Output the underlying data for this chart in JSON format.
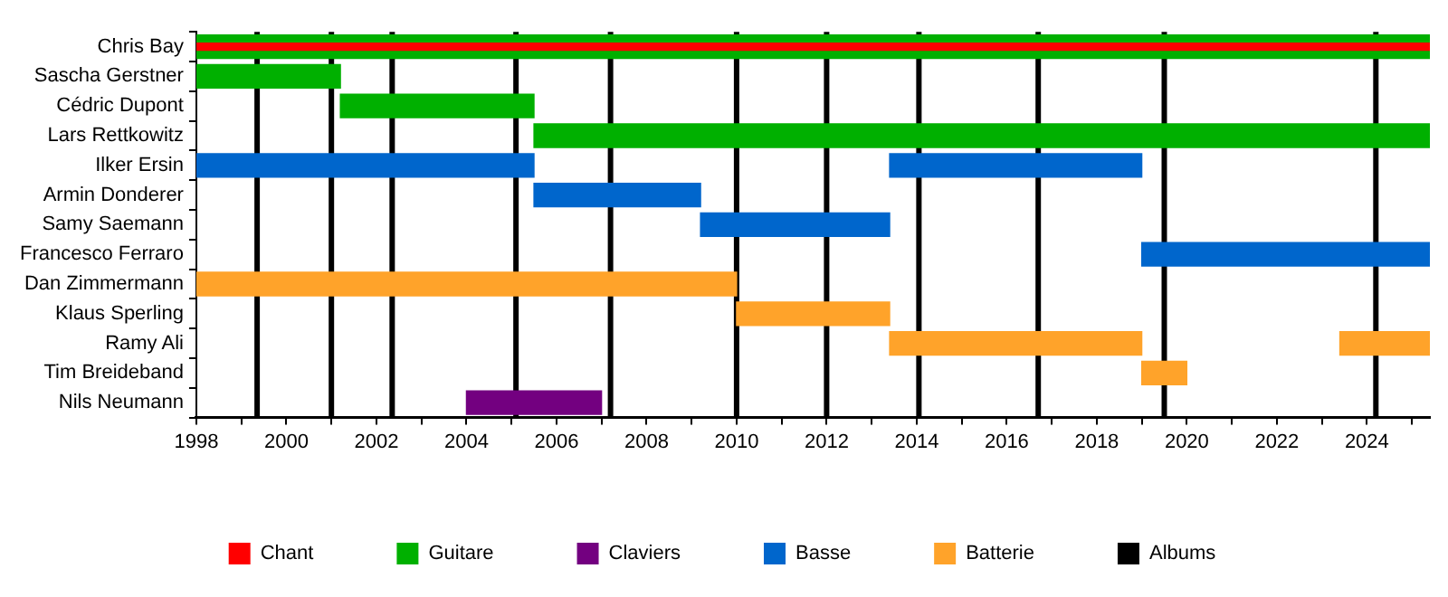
{
  "chart_data": {
    "type": "bar",
    "orientation": "horizontal",
    "categories": [
      "Chris Bay",
      "Sascha Gerstner",
      "Cédric Dupont",
      "Lars Rettkowitz",
      "Ilker Ersin",
      "Armin Donderer",
      "Samy Saemann",
      "Francesco Ferraro",
      "Dan Zimmermann",
      "Klaus Sperling",
      "Ramy Ali",
      "Tim Breideband",
      "Nils Neumann"
    ],
    "series": [
      {
        "name": "Chant",
        "color": "#ff0000",
        "values": [
          27.4,
          null,
          null,
          null,
          null,
          null,
          null,
          null,
          null,
          null,
          null,
          null,
          null
        ],
        "base": [
          1998,
          null,
          null,
          null,
          null,
          null,
          null,
          null,
          null,
          null,
          null,
          null,
          null
        ]
      },
      {
        "name": "Guitare",
        "color": "#00b000",
        "values": [
          27.4,
          3.2,
          4.3,
          19.9,
          null,
          null,
          null,
          null,
          null,
          null,
          null,
          null,
          null
        ],
        "base": [
          1998,
          1998,
          2001.2,
          2005.5,
          null,
          null,
          null,
          null,
          null,
          null,
          null,
          null,
          null
        ]
      },
      {
        "name": "Claviers",
        "color": "#730080",
        "values": [
          null,
          null,
          null,
          null,
          null,
          null,
          null,
          null,
          null,
          null,
          null,
          null,
          3
        ],
        "base": [
          null,
          null,
          null,
          null,
          null,
          null,
          null,
          null,
          null,
          null,
          null,
          null,
          2004
        ]
      },
      {
        "name": "Basse",
        "color": "#0066cc",
        "values": [
          null,
          null,
          null,
          null,
          7.5,
          3.7,
          4.2,
          6.4,
          null,
          null,
          null,
          null,
          null
        ],
        "base": [
          null,
          null,
          null,
          null,
          1998,
          2005.5,
          2009.2,
          2019,
          null,
          null,
          null,
          null,
          null
        ]
      },
      {
        "color": "#0066cc",
        "values": [
          null,
          null,
          null,
          null,
          5.6,
          null,
          null,
          null,
          null,
          null,
          null,
          null,
          null
        ],
        "base": [
          null,
          null,
          null,
          null,
          2013.4,
          null,
          null,
          null,
          null,
          null,
          null,
          null,
          null
        ]
      },
      {
        "name": "Batterie",
        "color": "#ffa32a",
        "values": [
          null,
          null,
          null,
          null,
          null,
          null,
          null,
          null,
          12,
          3.4,
          5.6,
          1,
          null
        ],
        "base": [
          null,
          null,
          null,
          null,
          null,
          null,
          null,
          null,
          1998,
          2010,
          2013.4,
          2019,
          null
        ]
      },
      {
        "color": "#ffa32a",
        "values": [
          null,
          null,
          null,
          null,
          null,
          null,
          null,
          null,
          null,
          null,
          2,
          null,
          null
        ],
        "base": [
          null,
          null,
          null,
          null,
          null,
          null,
          null,
          null,
          null,
          null,
          2023.4,
          null,
          null
        ]
      }
    ],
    "xlim": [
      1998,
      2025.4
    ],
    "xticks": [
      1998,
      {
        "value": 1999,
        "label": null
      },
      2000,
      {
        "value": 2001,
        "label": null
      },
      2002,
      {
        "value": 2003,
        "label": null
      },
      2004,
      {
        "value": 2005,
        "label": null
      },
      2006,
      {
        "value": 2007,
        "label": null
      },
      2008,
      {
        "value": 2009,
        "label": null
      },
      2010,
      {
        "value": 2011,
        "label": null
      },
      2012,
      {
        "value": 2013,
        "label": null
      },
      2014,
      {
        "value": 2015,
        "label": null
      },
      2016,
      {
        "value": 2017,
        "label": null
      },
      2018,
      {
        "value": 2019,
        "label": null
      },
      2020,
      {
        "value": 2021,
        "label": null
      },
      2022,
      {
        "value": 2023,
        "label": null
      },
      2024,
      {
        "value": 2025,
        "label": null
      }
    ],
    "ref_lines": [
      {
        "axis": "x",
        "value": 1999.35,
        "label": "Albums",
        "color": "#000000"
      },
      {
        "axis": "x",
        "value": 2001,
        "color": "#000000"
      },
      {
        "axis": "x",
        "value": 2002.35,
        "color": "#000000"
      },
      {
        "axis": "x",
        "value": 2005.1,
        "color": "#000000"
      },
      {
        "axis": "x",
        "value": 2007.2,
        "color": "#000000"
      },
      {
        "axis": "x",
        "value": 2010,
        "color": "#000000"
      },
      {
        "axis": "x",
        "value": 2012,
        "color": "#000000"
      },
      {
        "axis": "x",
        "value": 2014.05,
        "color": "#000000"
      },
      {
        "axis": "x",
        "value": 2016.7,
        "color": "#000000"
      },
      {
        "axis": "x",
        "value": 2019.5,
        "color": "#000000"
      },
      {
        "axis": "x",
        "value": 2024.2,
        "color": "#000000"
      }
    ],
    "legend": "bottom",
    "grid": false
  }
}
